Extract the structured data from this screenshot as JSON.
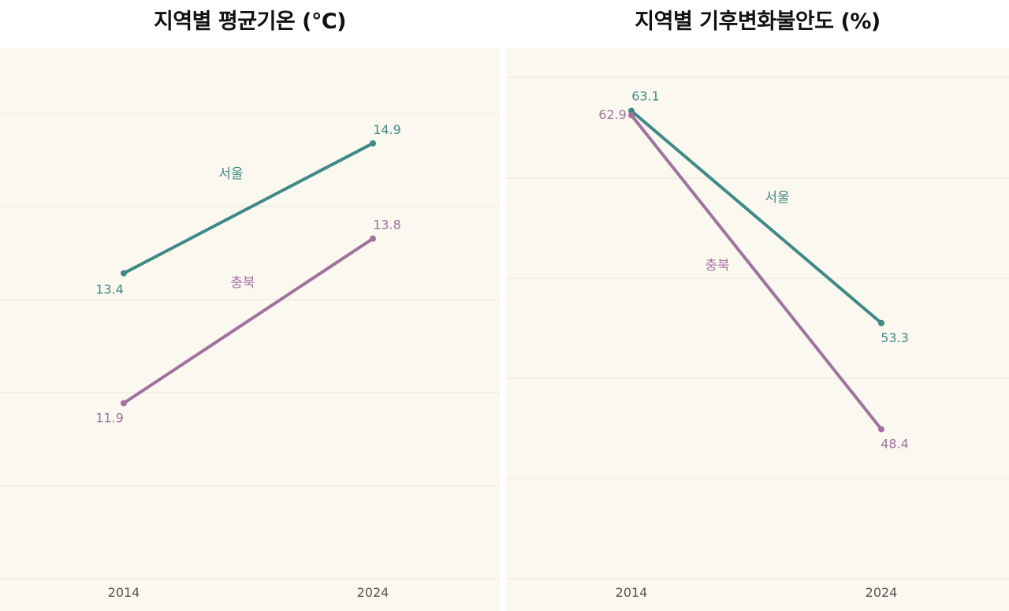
{
  "chart_data": [
    {
      "type": "line",
      "title": "지역별 평균기온 (℃)",
      "categories": [
        "2014",
        "2024"
      ],
      "series": [
        {
          "name": "서울",
          "values": [
            13.4,
            14.9
          ],
          "color": "#3f8a85"
        },
        {
          "name": "충북",
          "values": [
            11.9,
            13.8
          ],
          "color": "#a0739e"
        }
      ],
      "value_labels": [
        [
          "13.4",
          "14.9"
        ],
        [
          "11.9",
          "13.8"
        ]
      ],
      "xlabel": "",
      "ylabel": "",
      "ylim": [
        9.5,
        16.0
      ],
      "grid": true,
      "y_axis_labels": false
    },
    {
      "type": "line",
      "title": "지역별 기후변화불안도 (%)",
      "categories": [
        "2014",
        "2024"
      ],
      "series": [
        {
          "name": "서울",
          "values": [
            63.1,
            53.3
          ],
          "color": "#3f8a85"
        },
        {
          "name": "충북",
          "values": [
            62.9,
            48.4
          ],
          "color": "#a0739e"
        }
      ],
      "value_labels": [
        [
          "63.1",
          "53.3"
        ],
        [
          "62.9",
          "48.4"
        ]
      ],
      "xlabel": "",
      "ylabel": "",
      "ylim": [
        40,
        66
      ],
      "grid": true,
      "y_axis_labels": false
    }
  ]
}
